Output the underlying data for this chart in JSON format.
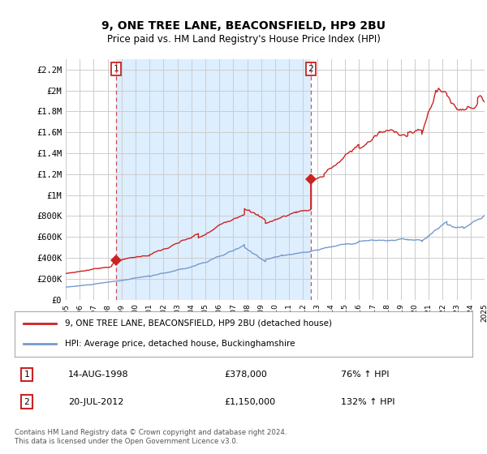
{
  "title": "9, ONE TREE LANE, BEACONSFIELD, HP9 2BU",
  "subtitle": "Price paid vs. HM Land Registry's House Price Index (HPI)",
  "ylim": [
    0,
    2300000
  ],
  "yticks": [
    0,
    200000,
    400000,
    600000,
    800000,
    1000000,
    1200000,
    1400000,
    1600000,
    1800000,
    2000000,
    2200000
  ],
  "ytick_labels": [
    "£0",
    "£200K",
    "£400K",
    "£600K",
    "£800K",
    "£1M",
    "£1.2M",
    "£1.4M",
    "£1.6M",
    "£1.8M",
    "£2M",
    "£2.2M"
  ],
  "background_color": "#ffffff",
  "plot_bg_color": "#ffffff",
  "highlight_bg_color": "#ddeeff",
  "grid_color": "#cccccc",
  "red_color": "#cc2222",
  "blue_color": "#7799cc",
  "transaction1_x": 1998.62,
  "transaction1_y": 378000,
  "transaction2_x": 2012.55,
  "transaction2_y": 1150000,
  "legend_line1": "9, ONE TREE LANE, BEACONSFIELD, HP9 2BU (detached house)",
  "legend_line2": "HPI: Average price, detached house, Buckinghamshire",
  "footer": "Contains HM Land Registry data © Crown copyright and database right 2024.\nThis data is licensed under the Open Government Licence v3.0.",
  "xmin": 1995,
  "xmax": 2025,
  "xticks": [
    1995,
    1996,
    1997,
    1998,
    1999,
    2000,
    2001,
    2002,
    2003,
    2004,
    2005,
    2006,
    2007,
    2008,
    2009,
    2010,
    2011,
    2012,
    2013,
    2014,
    2015,
    2016,
    2017,
    2018,
    2019,
    2020,
    2021,
    2022,
    2023,
    2024,
    2025
  ]
}
